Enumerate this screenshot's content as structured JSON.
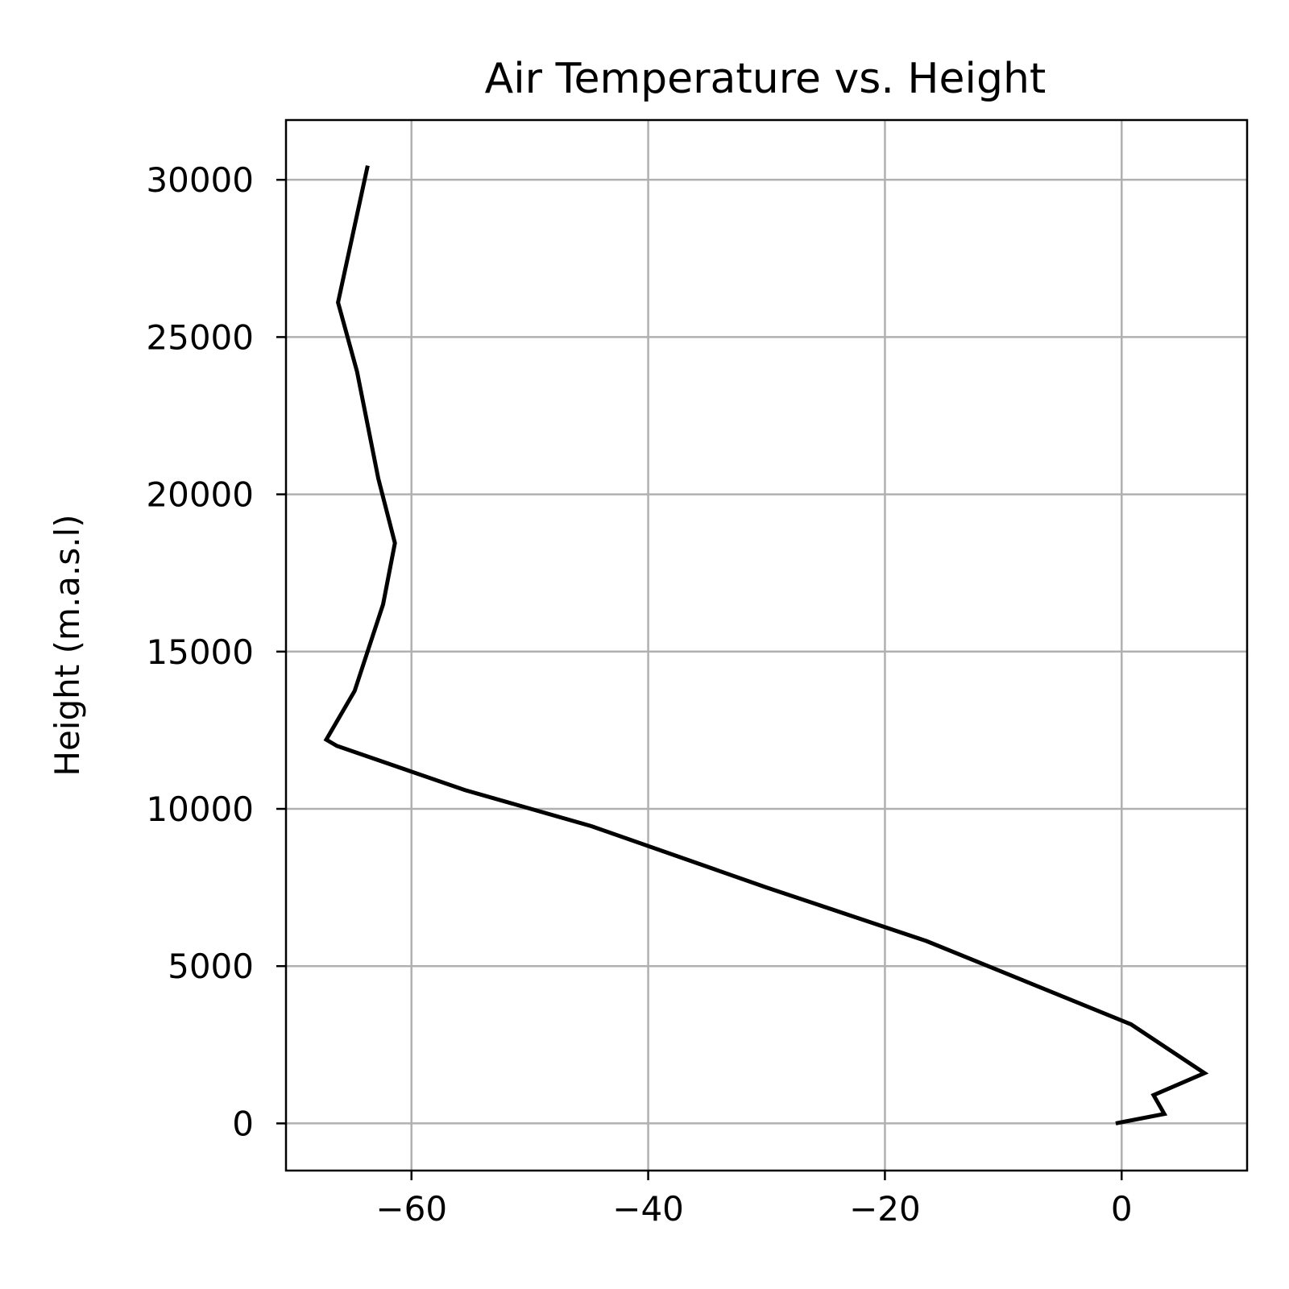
{
  "chart_data": {
    "type": "line",
    "title": "Air Temperature vs. Height",
    "xlabel": "",
    "ylabel": "Height (m.a.s.l)",
    "xlim": [
      -70.6,
      10.6
    ],
    "ylim": [
      -1500,
      31900
    ],
    "xticks": [
      -60,
      -40,
      -20,
      0
    ],
    "xtick_labels": [
      "−60",
      "−40",
      "−20",
      "0"
    ],
    "yticks": [
      0,
      5000,
      10000,
      15000,
      20000,
      25000,
      30000
    ],
    "ytick_labels": [
      "0",
      "5000",
      "10000",
      "15000",
      "20000",
      "25000",
      "30000"
    ],
    "grid": true,
    "line_color": "#000000",
    "grid_color": "#b0b0b0",
    "series": [
      {
        "x": [
          -0.5,
          3.6,
          2.7,
          7.0,
          0.8,
          -16.5,
          -30.0,
          -44.8,
          -55.5,
          -66.3,
          -67.2,
          -64.8,
          -62.4,
          -61.4,
          -62.8,
          -64.6,
          -66.2,
          -63.7
        ],
        "y": [
          0,
          300,
          900,
          1600,
          3150,
          5800,
          7500,
          9450,
          10600,
          12000,
          12200,
          13750,
          16500,
          18450,
          20500,
          23900,
          26100,
          30450
        ]
      }
    ]
  }
}
